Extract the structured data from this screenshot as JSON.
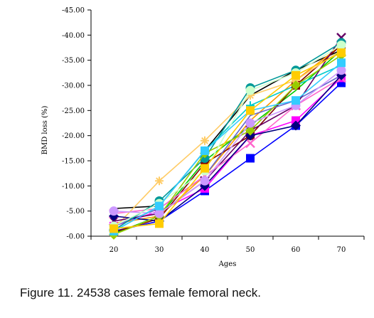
{
  "figure": {
    "caption": "Figure 11. 24538 cases female femoral neck."
  },
  "chart_data": {
    "type": "line",
    "title": "",
    "xlabel": "Ages",
    "ylabel": "BMD loss (%)",
    "x": [
      20,
      30,
      40,
      50,
      60,
      70
    ],
    "x_tick_labels": [
      "20",
      "30",
      "40",
      "50",
      "60",
      "70"
    ],
    "y_tick_labels": [
      "-0.00",
      "-5.00",
      "-10.00",
      "-15.00",
      "-20.00",
      "-25.00",
      "-30.00",
      "-35.00",
      "-40.00",
      "-45.00"
    ],
    "ylim": [
      0,
      -45
    ],
    "y_step": -5,
    "grid": false,
    "legend": "none",
    "series": [
      {
        "color": "#000000",
        "marker": "none",
        "values": [
          -5.5,
          -6,
          -17,
          -28,
          -33,
          -37
        ]
      },
      {
        "color": "#0000FF",
        "marker": "square",
        "values": [
          -1,
          -3,
          -9,
          -15.5,
          -22,
          -30.5
        ]
      },
      {
        "color": "#FF00FF",
        "marker": "square",
        "values": [
          -2,
          -5,
          -9.5,
          -20,
          -23,
          -31.5
        ]
      },
      {
        "color": "#00CC00",
        "marker": "none",
        "values": [
          -0.5,
          -4,
          -15,
          -22,
          -29,
          -37
        ]
      },
      {
        "color": "#FF9900",
        "marker": "none",
        "values": [
          -2.5,
          -4,
          -12,
          -23,
          -31,
          -38
        ]
      },
      {
        "color": "#00CCCC",
        "marker": "star",
        "values": [
          -1,
          -6,
          -17,
          -26,
          -30,
          -34
        ]
      },
      {
        "color": "#800000",
        "marker": "square",
        "values": [
          -0.8,
          -3.5,
          -14.5,
          -20,
          -30,
          -38
        ]
      },
      {
        "color": "#FFCC66",
        "marker": "asterisk",
        "values": [
          -1.5,
          -11,
          -19,
          -28,
          -31,
          -37
        ]
      },
      {
        "color": "#6666CC",
        "marker": "none",
        "values": [
          -2,
          -5.5,
          -12,
          -24,
          -27,
          -32
        ]
      },
      {
        "color": "#660066",
        "marker": "x",
        "values": [
          -3,
          -4.5,
          -11,
          -21,
          -26,
          -39.5
        ]
      },
      {
        "color": "#FF66CC",
        "marker": "x",
        "values": [
          -4.5,
          -5.5,
          -12,
          -18.5,
          -26,
          -31.5
        ]
      },
      {
        "color": "#000080",
        "marker": "diamond",
        "values": [
          -4,
          -3,
          -10,
          -20,
          -22,
          -32
        ]
      },
      {
        "color": "#009999",
        "marker": "circle",
        "values": [
          -1.2,
          -7,
          -15.5,
          -29.5,
          -33,
          -38.5
        ]
      },
      {
        "color": "#99CC00",
        "marker": "diamond",
        "values": [
          -0.3,
          -4,
          -16.5,
          -21,
          -30,
          -36
        ]
      },
      {
        "color": "#CC99FF",
        "marker": "circle",
        "values": [
          -5,
          -4.5,
          -11,
          -22.5,
          -26,
          -33
        ]
      },
      {
        "color": "#CCFFCC",
        "marker": "circle",
        "values": [
          -2,
          -6.5,
          -13,
          -29,
          -32.5,
          -38
        ]
      },
      {
        "color": "#33CCFF",
        "marker": "square",
        "values": [
          -1,
          -6,
          -17,
          -25,
          -27,
          -34.5
        ]
      },
      {
        "color": "#FFCC00",
        "marker": "square",
        "values": [
          -1.5,
          -2.5,
          -13.5,
          -25,
          -32,
          -36.5
        ]
      }
    ]
  }
}
